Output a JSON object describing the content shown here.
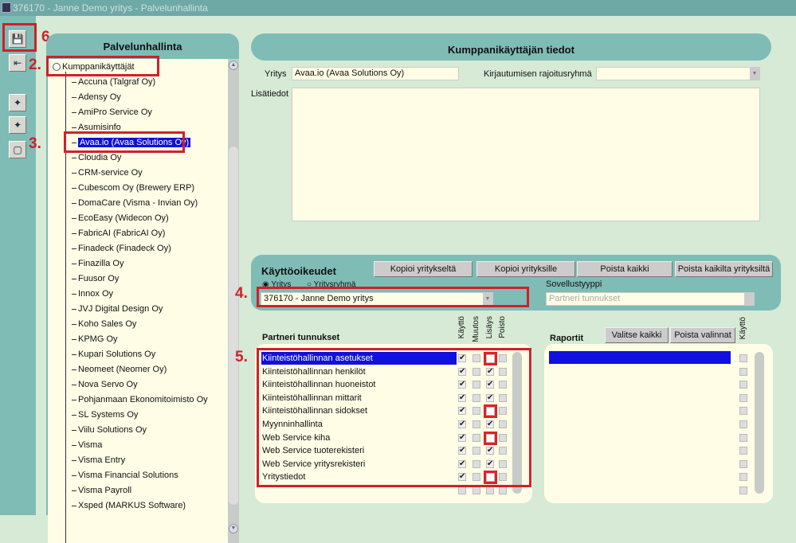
{
  "window": {
    "title": "376170 - Janne Demo yritys - Palvelunhallinta"
  },
  "toolbar": {
    "icons": [
      "save-icon",
      "exit-icon",
      "tool-icon-1",
      "tool-icon-2",
      "new-icon"
    ]
  },
  "annotations": {
    "a6": "6.",
    "a2": "2.",
    "a3": "3.",
    "a4": "4.",
    "a5": "5."
  },
  "tree": {
    "title": "Palvelunhallinta",
    "root": "Kumppanikäyttäjät",
    "selected": "Avaa.io (Avaa Solutions Oy)",
    "items": [
      "Accuna (Talgraf Oy)",
      "Adensy Oy",
      "AmiPro Service Oy",
      "Asumisinfo",
      "Avaa.io (Avaa Solutions Oy)",
      "Cloudia Oy",
      "CRM-service Oy",
      "Cubescom Oy (Brewery ERP)",
      "DomaCare (Visma - Invian Oy)",
      "EcoEasy (Widecon Oy)",
      "FabricAI (FabricAI Oy)",
      "Finadeck (Finadeck Oy)",
      "Finazilla Oy",
      "Fuusor Oy",
      "Innox Oy",
      "JVJ Digital Design Oy",
      "Koho Sales Oy",
      "KPMG Oy",
      "Kupari Solutions Oy",
      "Neomeet (Neomer Oy)",
      "Nova Servo Oy",
      "Pohjanmaan Ekonomitoimisto Oy",
      "SL Systems Oy",
      "Viilu Solutions Oy",
      "Visma",
      "Visma Entry",
      "Visma Financial Solutions",
      "Visma Payroll",
      "Xsped (MARKUS Software)"
    ]
  },
  "details": {
    "title": "Kumppanikäyttäjän tiedot",
    "yritys_label": "Yritys",
    "yritys_value": "Avaa.io (Avaa Solutions Oy)",
    "kirjaus_label": "Kirjautumisen rajoitusryhmä",
    "kirjaus_value": "",
    "lisatiedot_label": "Lisätiedot",
    "lisatiedot_value": ""
  },
  "rights": {
    "title": "Käyttöoikeudet",
    "buttons": [
      "Kopioi yritykseltä",
      "Kopioi yrityksille",
      "Poista kaikki",
      "Poista kaikilta yrityksiltä"
    ],
    "radio_yritys": "Yritys",
    "radio_ryhma": "Yritysryhmä",
    "radio_selected": "Yritys",
    "company_value": "376170 - Janne Demo yritys",
    "sovellus_label": "Sovellustyyppi",
    "sovellus_value": "Partneri tunnukset"
  },
  "partner": {
    "title": "Partneri tunnukset",
    "columns": [
      "Käyttö",
      "Muutos",
      "Lisäys",
      "Poisto"
    ],
    "rows": [
      {
        "name": "Kiinteistöhallinnan asetukset",
        "kaytto": true,
        "muutos": false,
        "lisays": false,
        "poisto": false,
        "highlight": true
      },
      {
        "name": "Kiinteistöhallinnan henkilöt",
        "kaytto": true,
        "muutos": false,
        "lisays": true,
        "poisto": false
      },
      {
        "name": "Kiinteistöhallinnan huoneistot",
        "kaytto": true,
        "muutos": false,
        "lisays": true,
        "poisto": false
      },
      {
        "name": "Kiinteistöhallinnan mittarit",
        "kaytto": true,
        "muutos": false,
        "lisays": true,
        "poisto": false
      },
      {
        "name": "Kiinteistöhallinnan sidokset",
        "kaytto": true,
        "muutos": false,
        "lisays": false,
        "poisto": false,
        "highlight": true
      },
      {
        "name": "Myynninhallinta",
        "kaytto": true,
        "muutos": false,
        "lisays": true,
        "poisto": false
      },
      {
        "name": "Web Service kiha",
        "kaytto": true,
        "muutos": false,
        "lisays": false,
        "poisto": false,
        "highlight": true
      },
      {
        "name": "Web Service tuoterekisteri",
        "kaytto": true,
        "muutos": false,
        "lisays": true,
        "poisto": false
      },
      {
        "name": "Web Service yritysrekisteri",
        "kaytto": true,
        "muutos": false,
        "lisays": true,
        "poisto": false
      },
      {
        "name": "Yritystiedot",
        "kaytto": true,
        "muutos": false,
        "lisays": false,
        "poisto": false,
        "highlight": true
      }
    ]
  },
  "reports": {
    "title": "Raportit",
    "select_all": "Valitse kaikki",
    "clear": "Poista valinnat",
    "column": "Käyttö"
  },
  "colors": {
    "teal": "#7fbcb6",
    "selection": "#1010e0",
    "annotation": "#d0202a",
    "field": "#fffde6"
  }
}
